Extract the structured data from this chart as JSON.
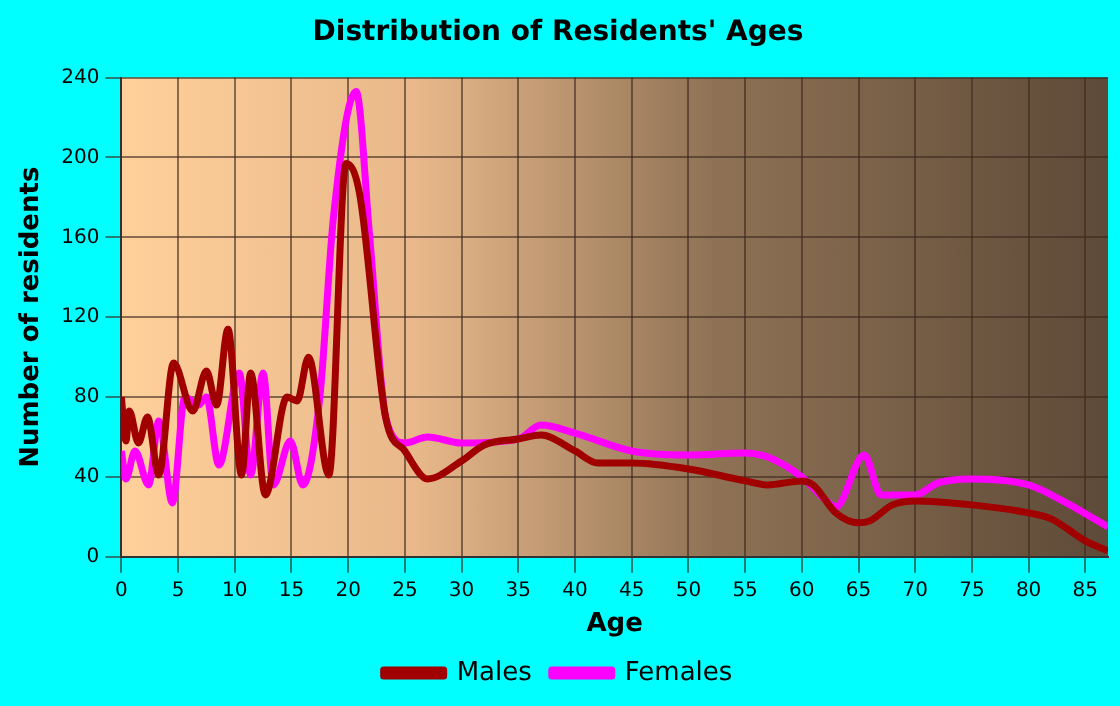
{
  "chart_data": {
    "type": "line",
    "title": "Distribution of Residents' Ages",
    "xlabel": "Age",
    "ylabel": "Number of residents",
    "xlim": [
      0,
      87
    ],
    "xticks": [
      0,
      5,
      10,
      15,
      20,
      25,
      30,
      35,
      40,
      45,
      50,
      55,
      60,
      65,
      70,
      75,
      80,
      85
    ],
    "ylim": [
      0,
      240
    ],
    "yticks": [
      0,
      40,
      80,
      120,
      160,
      200,
      240
    ],
    "grid": true,
    "legend": "bottom",
    "marker": "none",
    "line_style": "solid",
    "series": [
      {
        "name": "Males",
        "color": "#a00000",
        "x": [
          0,
          0.4,
          0.7,
          1.5,
          2.3,
          3.3,
          4.6,
          6.3,
          7.5,
          8.4,
          9.4,
          10.6,
          11.4,
          12.7,
          14.6,
          15.5,
          16.5,
          18.3,
          19.8,
          21,
          23.3,
          25,
          27,
          30,
          32,
          35,
          37,
          40,
          42,
          45,
          50,
          55,
          57,
          60,
          61,
          63,
          65,
          66,
          68,
          70,
          75,
          80,
          82,
          85,
          87
        ],
        "values": [
          80,
          58,
          73,
          57,
          70,
          41,
          97,
          73,
          93,
          76,
          114,
          41,
          92,
          31,
          80,
          78,
          100,
          41,
          197,
          182,
          70,
          53,
          39,
          48,
          56,
          59,
          61,
          53,
          47,
          47,
          44,
          38,
          36,
          38,
          36,
          22,
          17,
          18,
          26,
          28,
          26,
          22,
          19,
          8,
          3
        ]
      },
      {
        "name": "Females",
        "color": "#ff00ff",
        "x": [
          0,
          0.4,
          1.2,
          2.4,
          3.3,
          4.5,
          5.6,
          6.8,
          7.5,
          8.6,
          10.4,
          11.4,
          12.5,
          13.4,
          14.9,
          16,
          17.5,
          18.7,
          20.7,
          21.9,
          23.3,
          25,
          27,
          30,
          35,
          37,
          40,
          45,
          50,
          55,
          57,
          60,
          62,
          63,
          65.5,
          67,
          70,
          72,
          75,
          80,
          83,
          87
        ],
        "values": [
          53,
          39,
          53,
          36,
          68,
          27,
          80,
          76,
          80,
          46,
          92,
          41,
          92,
          36,
          58,
          36,
          80,
          170,
          233,
          160,
          70,
          57,
          60,
          57,
          59,
          66,
          62,
          53,
          51,
          52,
          50,
          40,
          29,
          25,
          51,
          31,
          31,
          37,
          39,
          36,
          28,
          15
        ]
      }
    ]
  }
}
